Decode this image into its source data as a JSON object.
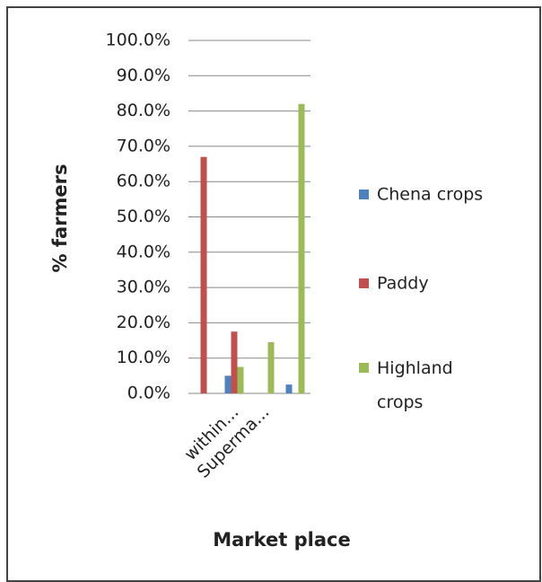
{
  "chart_data": {
    "type": "bar",
    "categories": [
      null,
      "within...",
      "Superma...",
      null
    ],
    "series": [
      {
        "name": "Chena crops",
        "color": "#4f81bd",
        "values": [
          0,
          5,
          0,
          2.5
        ]
      },
      {
        "name": "Paddy",
        "color": "#c0504d",
        "values": [
          67,
          17.5,
          0,
          0
        ]
      },
      {
        "name": "Highland crops",
        "color": "#9bbb59",
        "values": [
          0,
          7.5,
          14.5,
          82
        ]
      }
    ],
    "x_label": "Market place",
    "y_label": "% farmers",
    "ylim": [
      0,
      100
    ],
    "yticks": [
      {
        "value": 0,
        "label": "0.0%"
      },
      {
        "value": 10,
        "label": "10.0%"
      },
      {
        "value": 20,
        "label": "20.0%"
      },
      {
        "value": 30,
        "label": "30.0%"
      },
      {
        "value": 40,
        "label": "40.0%"
      },
      {
        "value": 50,
        "label": "50.0%"
      },
      {
        "value": 60,
        "label": "60.0%"
      },
      {
        "value": 70,
        "label": "70.0%"
      },
      {
        "value": 80,
        "label": "80.0%"
      },
      {
        "value": 90,
        "label": "90.0%"
      },
      {
        "value": 100,
        "label": "100.0%"
      }
    ],
    "grid": true,
    "legend": "right"
  }
}
